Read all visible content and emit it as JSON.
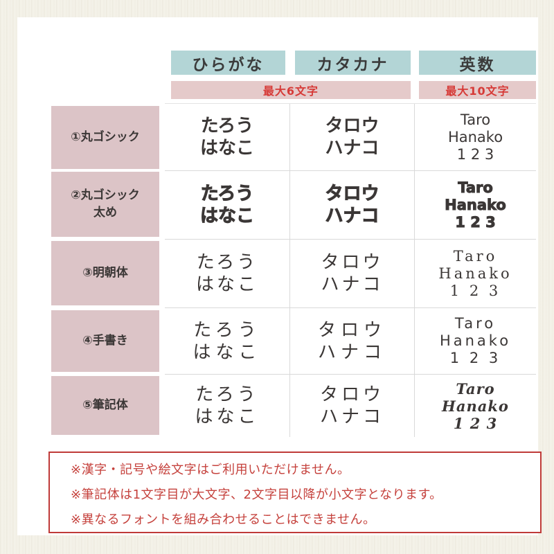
{
  "table": {
    "column_headers": [
      "ひらがな",
      "カタカナ",
      "英数"
    ],
    "char_limits": [
      "最大6文字",
      "最大10文字"
    ],
    "rows": [
      {
        "label": "①丸ゴシック",
        "hiragana": [
          "たろう",
          "はなこ"
        ],
        "katakana": [
          "タロウ",
          "ハナコ"
        ],
        "eisu": [
          "Taro",
          "Hanako",
          "1 2 3"
        ]
      },
      {
        "label": "②丸ゴシック\n太め",
        "hiragana": [
          "たろう",
          "はなこ"
        ],
        "katakana": [
          "タロウ",
          "ハナコ"
        ],
        "eisu": [
          "Taro",
          "Hanako",
          "1 2 3"
        ]
      },
      {
        "label": "③明朝体",
        "hiragana": [
          "たろう",
          "はなこ"
        ],
        "katakana": [
          "タロウ",
          "ハナコ"
        ],
        "eisu": [
          "Taro",
          "Hanako",
          "1 2 3"
        ]
      },
      {
        "label": "④手書き",
        "hiragana": [
          "たろう",
          "はなこ"
        ],
        "katakana": [
          "タロウ",
          "ハナコ"
        ],
        "eisu": [
          "Taro",
          "Hanako",
          "1 2 3"
        ]
      },
      {
        "label": "⑤筆記体",
        "hiragana": [
          "たろう",
          "はなこ"
        ],
        "katakana": [
          "タロウ",
          "ハナコ"
        ],
        "eisu": [
          "Taro",
          "Hanako",
          "1 2 3"
        ]
      }
    ]
  },
  "notes": [
    "※漢字・記号や絵文字はご利用いただけません。",
    "※筆記体は1文字目が大文字、2文字目以降が小文字となります。",
    "※異なるフォントを組み合わせることはできません。"
  ],
  "colors": {
    "page_bg": "#f5f3ea",
    "panel_bg": "#ffffff",
    "header_bg": "#b3d5d6",
    "limit_bg": "#e5caca",
    "limit_text": "#d63a37",
    "label_bg": "#dcc4c7",
    "sample_text": "#3b3736",
    "grid_line": "#d9d9d9",
    "note_text": "#c5413c",
    "note_border": "#bf3a38"
  }
}
